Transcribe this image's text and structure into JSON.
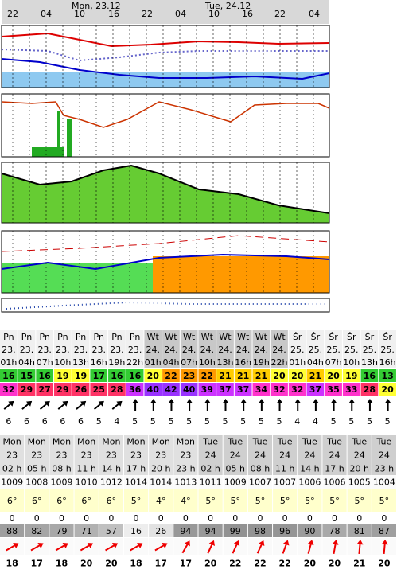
{
  "timeline": {
    "labels": [
      "22",
      "04",
      "Mon, 23.12",
      "10",
      "16",
      "22",
      "04",
      "Tue, 24.12",
      "10",
      "16",
      "22",
      "04"
    ]
  },
  "table_1": {
    "days": [
      "Pn",
      "Pn",
      "Pn",
      "Pn",
      "Pn",
      "Pn",
      "Pn",
      "Pn",
      "Wt",
      "Wt",
      "Wt",
      "Wt",
      "Wt",
      "Wt",
      "Wt",
      "Wt",
      "Śr",
      "Śr",
      "Śr",
      "Śr",
      "Śr",
      "Śr"
    ],
    "dates": [
      "23.",
      "23.",
      "23.",
      "23.",
      "23.",
      "23.",
      "23.",
      "23.",
      "24.",
      "24.",
      "24.",
      "24.",
      "24.",
      "24.",
      "24.",
      "24.",
      "25.",
      "25.",
      "25.",
      "25.",
      "25.",
      "25."
    ],
    "hours": [
      "01h",
      "04h",
      "07h",
      "10h",
      "13h",
      "16h",
      "19h",
      "22h",
      "01h",
      "04h",
      "07h",
      "10h",
      "13h",
      "16h",
      "19h",
      "22h",
      "01h",
      "04h",
      "07h",
      "10h",
      "13h",
      "16h"
    ],
    "temperature": [
      "16",
      "15",
      "16",
      "19",
      "19",
      "17",
      "16",
      "16",
      "20",
      "22",
      "23",
      "22",
      "21",
      "21",
      "21",
      "20",
      "20",
      "21",
      "20",
      "19",
      "16",
      "13"
    ],
    "feels_like": [
      "32",
      "29",
      "27",
      "29",
      "26",
      "25",
      "28",
      "36",
      "40",
      "42",
      "40",
      "39",
      "37",
      "37",
      "34",
      "32",
      "32",
      "37",
      "35",
      "33",
      "28",
      "20"
    ],
    "wind_dir": [
      50,
      50,
      50,
      50,
      50,
      50,
      50,
      0,
      0,
      0,
      0,
      0,
      0,
      0,
      0,
      0,
      0,
      0,
      0,
      0,
      0,
      0
    ],
    "wind_speed": [
      "6",
      "6",
      "6",
      "6",
      "6",
      "5",
      "4",
      "5",
      "5",
      "5",
      "5",
      "5",
      "5",
      "5",
      "5",
      "5",
      "4",
      "4",
      "5",
      "5",
      "5",
      "5"
    ]
  },
  "table_2": {
    "days": [
      "Mon",
      "Mon",
      "Mon",
      "Mon",
      "Mon",
      "Mon",
      "Mon",
      "Mon",
      "Tue",
      "Tue",
      "Tue",
      "Tue",
      "Tue",
      "Tue",
      "Tue",
      "Tue"
    ],
    "dates": [
      "23",
      "23",
      "23",
      "23",
      "23",
      "23",
      "23",
      "23",
      "24",
      "24",
      "24",
      "24",
      "24",
      "24",
      "24",
      "24"
    ],
    "hours": [
      "02 h",
      "05 h",
      "08 h",
      "11 h",
      "14 h",
      "17 h",
      "20 h",
      "23 h",
      "02 h",
      "05 h",
      "08 h",
      "11 h",
      "14 h",
      "17 h",
      "20 h",
      "23 h"
    ],
    "pressure": [
      "1009",
      "1008",
      "1009",
      "1010",
      "1012",
      "1014",
      "1014",
      "1013",
      "1011",
      "1009",
      "1007",
      "1007",
      "1006",
      "1006",
      "1005",
      "1004"
    ],
    "temperature": [
      "6°",
      "6°",
      "6°",
      "6°",
      "6°",
      "5°",
      "4°",
      "4°",
      "5°",
      "5°",
      "5°",
      "5°",
      "5°",
      "5°",
      "5°",
      "5°"
    ],
    "precipitation": [
      "0",
      "0",
      "0",
      "0",
      "0",
      "0",
      "0",
      "0",
      "0",
      "0",
      "0",
      "0",
      "0",
      "0",
      "0",
      "0"
    ],
    "humidity": [
      "88",
      "82",
      "79",
      "71",
      "57",
      "16",
      "26",
      "94",
      "94",
      "99",
      "98",
      "96",
      "90",
      "78",
      "81",
      "87"
    ],
    "wind_dir": [
      60,
      60,
      60,
      60,
      60,
      60,
      60,
      30,
      25,
      25,
      25,
      20,
      15,
      10,
      5,
      5
    ],
    "wind_speed": [
      "18",
      "17",
      "18",
      "20",
      "20",
      "18",
      "17",
      "17",
      "20",
      "22",
      "22",
      "22",
      "20",
      "20",
      "21",
      "20"
    ]
  }
}
